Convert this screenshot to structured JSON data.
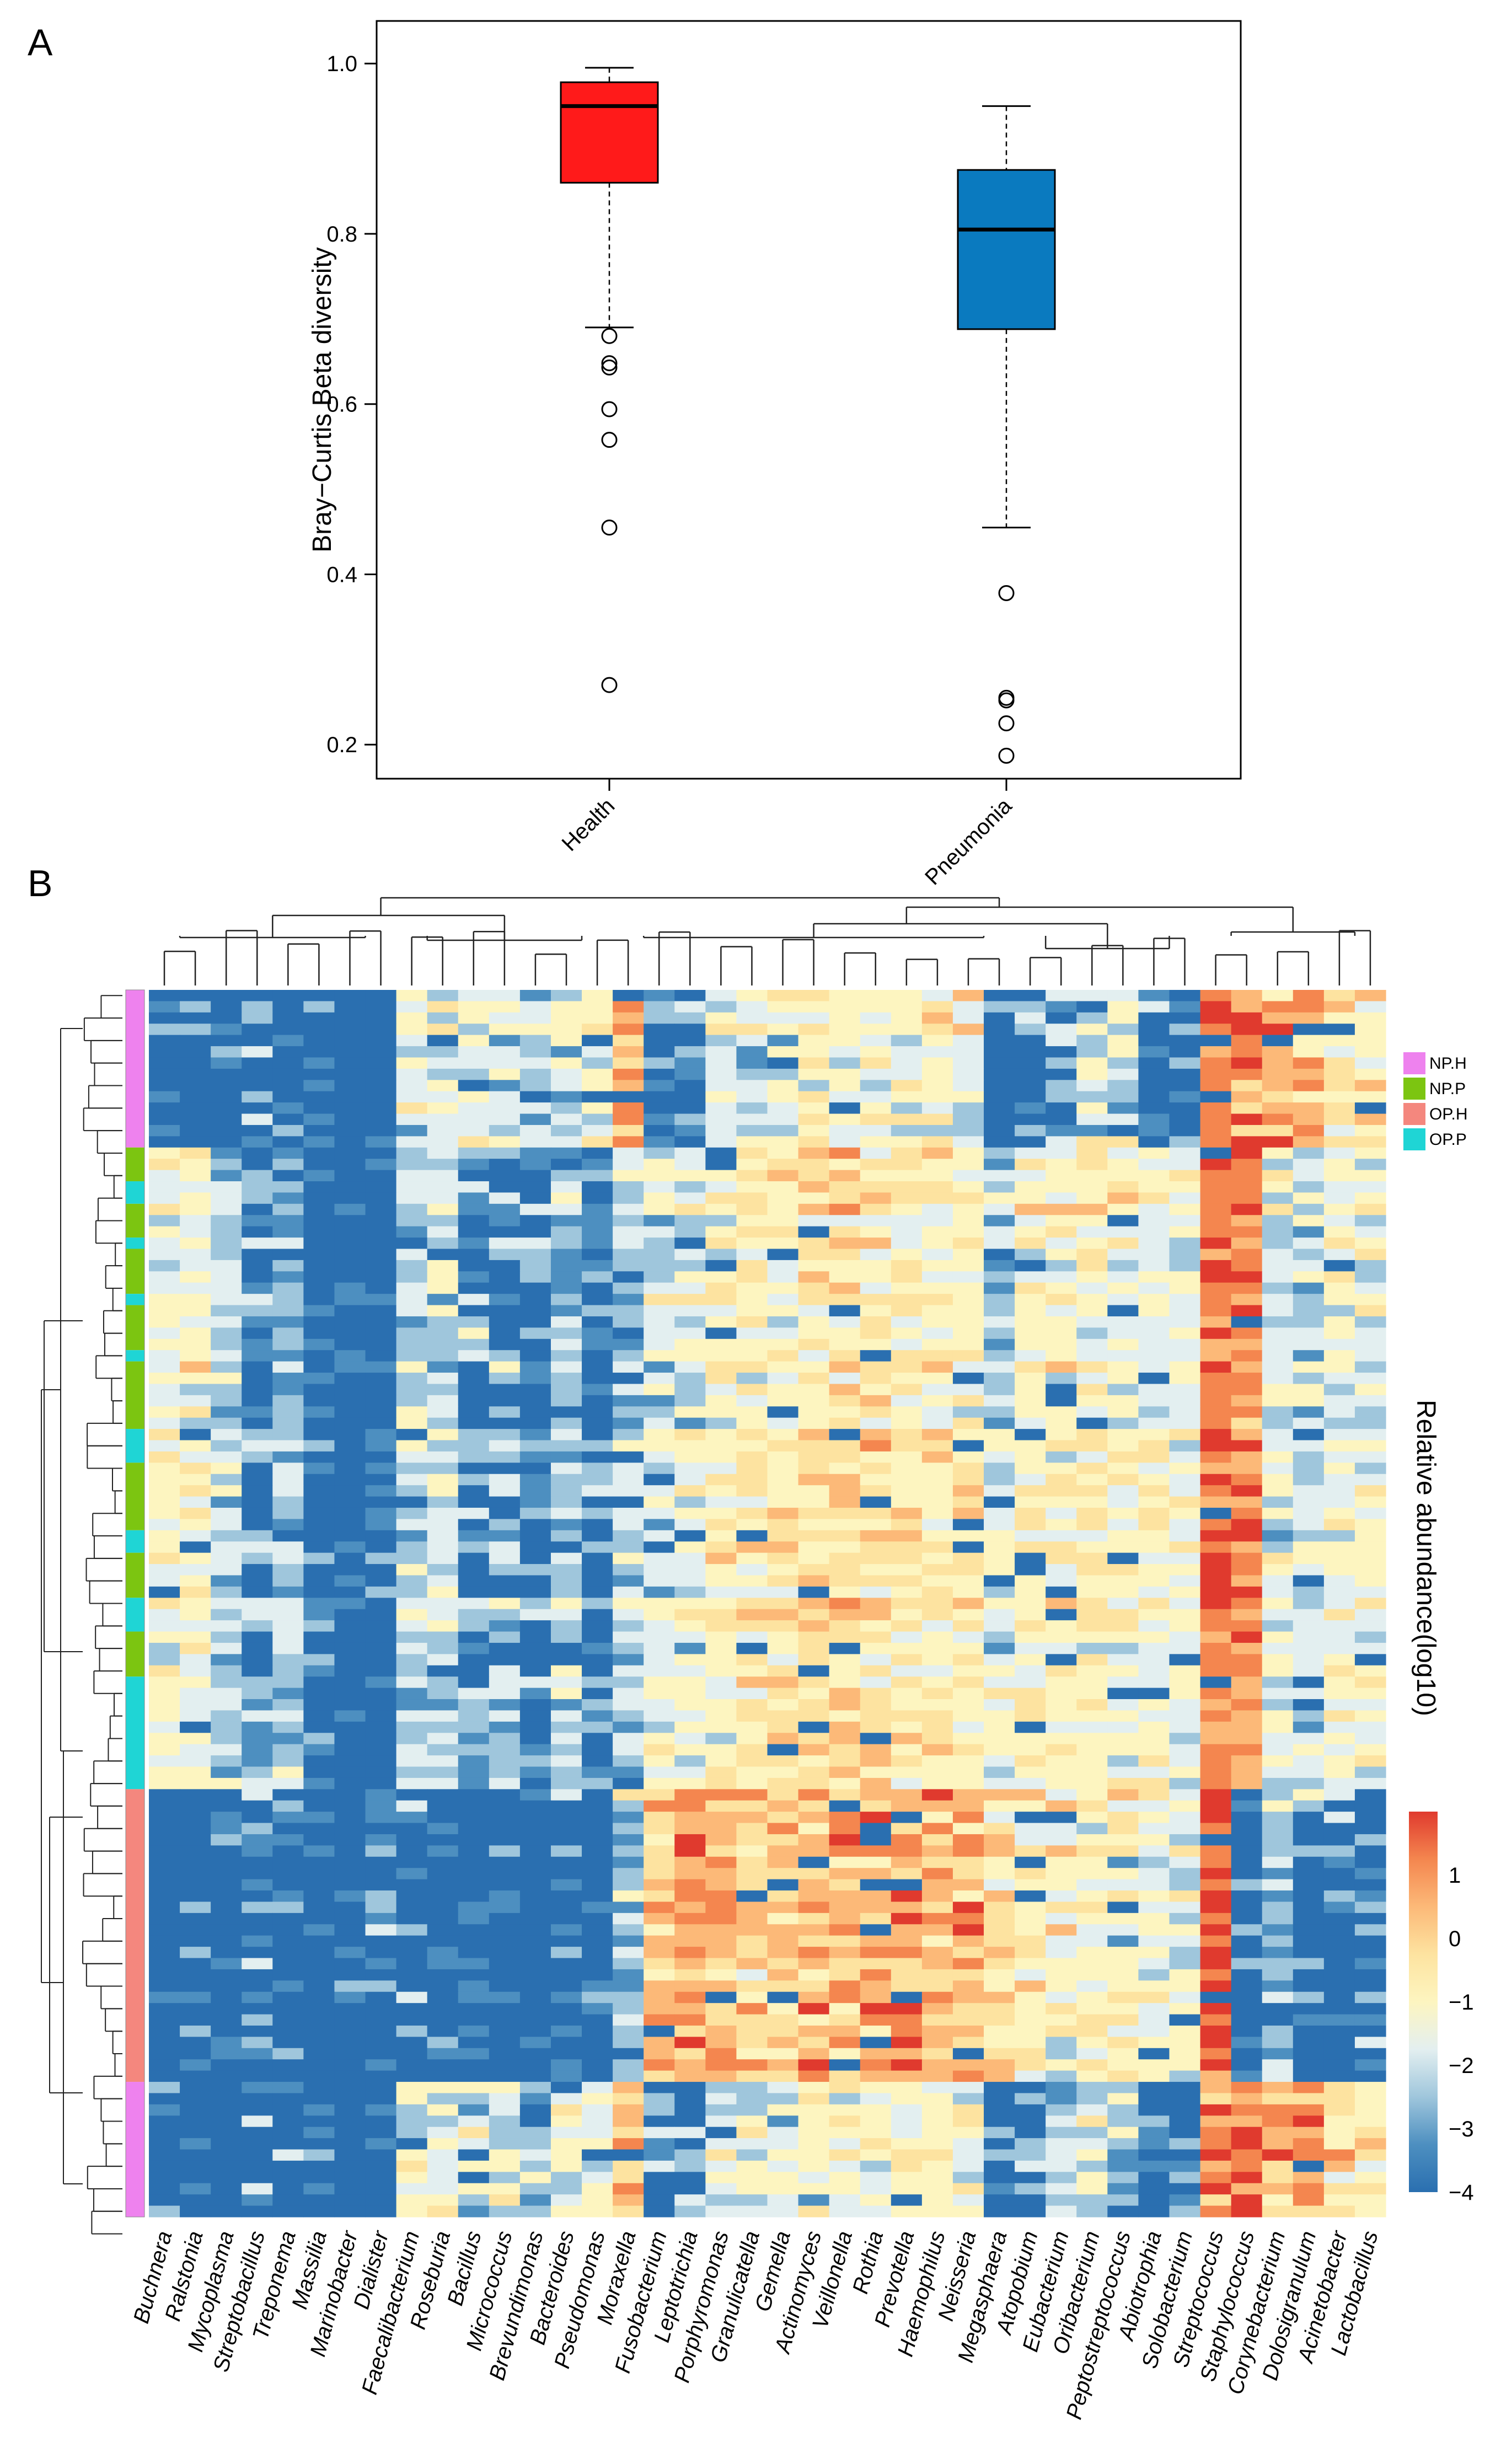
{
  "figure": {
    "panel_a_label": "A",
    "panel_b_label": "B"
  },
  "chart_data": [
    {
      "type": "box",
      "ylabel": "Bray−Curtis Beta diversity",
      "xlabel": "",
      "ylim": [
        0.16,
        1.05
      ],
      "yticks": [
        "0.2",
        "0.4",
        "0.6",
        "0.8",
        "1.0"
      ],
      "grid": false,
      "groups": [
        {
          "name": "Health",
          "color": "#ff1a1a",
          "whisker_low": 0.69,
          "q1": 0.86,
          "median": 0.95,
          "q3": 0.978,
          "whisker_high": 0.995,
          "outliers": [
            0.68,
            0.648,
            0.643,
            0.594,
            0.558,
            0.455,
            0.27
          ]
        },
        {
          "name": "Pneumonia",
          "color": "#0a7abf",
          "whisker_low": 0.455,
          "q1": 0.688,
          "median": 0.805,
          "q3": 0.875,
          "whisker_high": 0.95,
          "outliers": [
            0.378,
            0.255,
            0.252,
            0.225,
            0.187
          ]
        }
      ]
    },
    {
      "type": "heatmap",
      "title": "",
      "colorbar_label": "Relative abundance(log10)",
      "colorbar_ticks": [
        "1",
        "0",
        "−1",
        "−2",
        "−3",
        "−4"
      ],
      "value_range": [
        -4,
        2
      ],
      "colors": [
        "#2a6fb0",
        "#4d8fc0",
        "#9fc6dc",
        "#e3eff0",
        "#fdf5c0",
        "#fde3a0",
        "#fcb978",
        "#f4864f",
        "#e03a2e"
      ],
      "legend": [
        {
          "label": "NP.H",
          "color": "#ee82ee"
        },
        {
          "label": "NP.P",
          "color": "#7cc511"
        },
        {
          "label": "OP.H",
          "color": "#f4877e"
        },
        {
          "label": "OP.P",
          "color": "#1fd5d5"
        }
      ],
      "genera": [
        "Buchnera",
        "Ralstonia",
        "Mycoplasma",
        "Streptobacillus",
        "Treponema",
        "Massilia",
        "Marinobacter",
        "Dialister",
        "Faecalibacterium",
        "Roseburia",
        "Bacillus",
        "Micrococcus",
        "Brevundimonas",
        "Bacteroides",
        "Pseudomonas",
        "Moraxella",
        "Fusobacterium",
        "Leptotrichia",
        "Porphyromonas",
        "Granulicatella",
        "Gemella",
        "Actinomyces",
        "Veillonella",
        "Rothia",
        "Prevotella",
        "Haemophilus",
        "Neisseria",
        "Megasphaera",
        "Atopobium",
        "Eubacterium",
        "Oribacterium",
        "Peptostreptococcus",
        "Abiotrophia",
        "Solobacterium",
        "Streptococcus",
        "Staphylococcus",
        "Corynebacterium",
        "Dolosigranulum",
        "Acinetobacter",
        "Lactobacillus"
      ],
      "sample_groups": [
        {
          "group": "NP.H",
          "rows": 14
        },
        {
          "group": "NP.P",
          "rows": 3
        },
        {
          "group": "OP.P",
          "rows": 2
        },
        {
          "group": "NP.P",
          "rows": 3
        },
        {
          "group": "OP.P",
          "rows": 1
        },
        {
          "group": "NP.P",
          "rows": 4
        },
        {
          "group": "OP.P",
          "rows": 1
        },
        {
          "group": "NP.P",
          "rows": 4
        },
        {
          "group": "OP.P",
          "rows": 1
        },
        {
          "group": "NP.P",
          "rows": 6
        },
        {
          "group": "OP.P",
          "rows": 3
        },
        {
          "group": "NP.P",
          "rows": 6
        },
        {
          "group": "OP.P",
          "rows": 2
        },
        {
          "group": "NP.P",
          "rows": 4
        },
        {
          "group": "OP.P",
          "rows": 3
        },
        {
          "group": "NP.P",
          "rows": 4
        },
        {
          "group": "OP.P",
          "rows": 10
        },
        {
          "group": "OP.H",
          "rows": 26
        },
        {
          "group": "NP.H",
          "rows": 12
        }
      ],
      "cluster_profiles": {
        "NP.H": [
          -3.2,
          -3.3,
          -4.0,
          -2.8,
          -3.1,
          -3.4,
          -3.8,
          -3.7,
          -1.6,
          -1.6,
          -1.7,
          -1.8,
          -2.2,
          -1.5,
          -1.3,
          0.6,
          -3.0,
          -2.7,
          -1.6,
          -1.6,
          -1.5,
          -1.2,
          -1.2,
          -1.0,
          -1.3,
          -1.0,
          -1.3,
          -3.4,
          -2.8,
          -2.2,
          -1.6,
          -2.0,
          -2.9,
          -3.0,
          1.2,
          1.3,
          0.6,
          0.5,
          -0.4,
          -0.8
        ],
        "NP.P": [
          -1.4,
          -1.2,
          -2.2,
          -3.0,
          -2.5,
          -3.2,
          -3.7,
          -3.5,
          -2.0,
          -2.0,
          -2.6,
          -2.6,
          -3.0,
          -2.4,
          -2.8,
          -2.3,
          -2.2,
          -1.8,
          -1.2,
          -0.9,
          -0.7,
          -0.5,
          -0.3,
          -0.7,
          -0.8,
          -0.9,
          -1.0,
          -2.4,
          -1.2,
          -1.2,
          -1.1,
          -1.2,
          -1.3,
          -1.5,
          1.4,
          1.2,
          -1.6,
          -2.0,
          -1.4,
          -1.6
        ],
        "OP.P": [
          -1.2,
          -1.1,
          -1.9,
          -2.5,
          -2.2,
          -2.9,
          -3.5,
          -3.3,
          -1.9,
          -2.1,
          -2.3,
          -2.2,
          -3.0,
          -2.2,
          -2.6,
          -2.1,
          -1.4,
          -1.0,
          -0.9,
          -0.6,
          -0.4,
          -0.2,
          -0.1,
          -0.2,
          -0.3,
          -0.5,
          -0.7,
          -1.6,
          -1.0,
          -1.0,
          -0.9,
          -1.0,
          -1.1,
          -1.3,
          1.5,
          0.9,
          -1.8,
          -2.0,
          -1.3,
          -1.5
        ],
        "OP.H": [
          -4.0,
          -4.0,
          -4.0,
          -2.6,
          -3.6,
          -4.0,
          -4.0,
          -3.2,
          -3.3,
          -3.6,
          -3.7,
          -3.8,
          -4.0,
          -3.5,
          -3.7,
          -2.5,
          0.3,
          0.5,
          0.4,
          0.2,
          0.3,
          0.3,
          0.6,
          0.5,
          0.9,
          0.2,
          0.5,
          -0.3,
          -0.6,
          -0.8,
          -0.9,
          -1.1,
          -1.4,
          -1.6,
          1.6,
          -3.0,
          -2.5,
          -2.6,
          -3.2,
          -3.0
        ]
      },
      "cluster_spread": {
        "NP.H": 0.9,
        "NP.P": 0.8,
        "OP.P": 0.8,
        "OP.H": 0.9
      }
    }
  ]
}
